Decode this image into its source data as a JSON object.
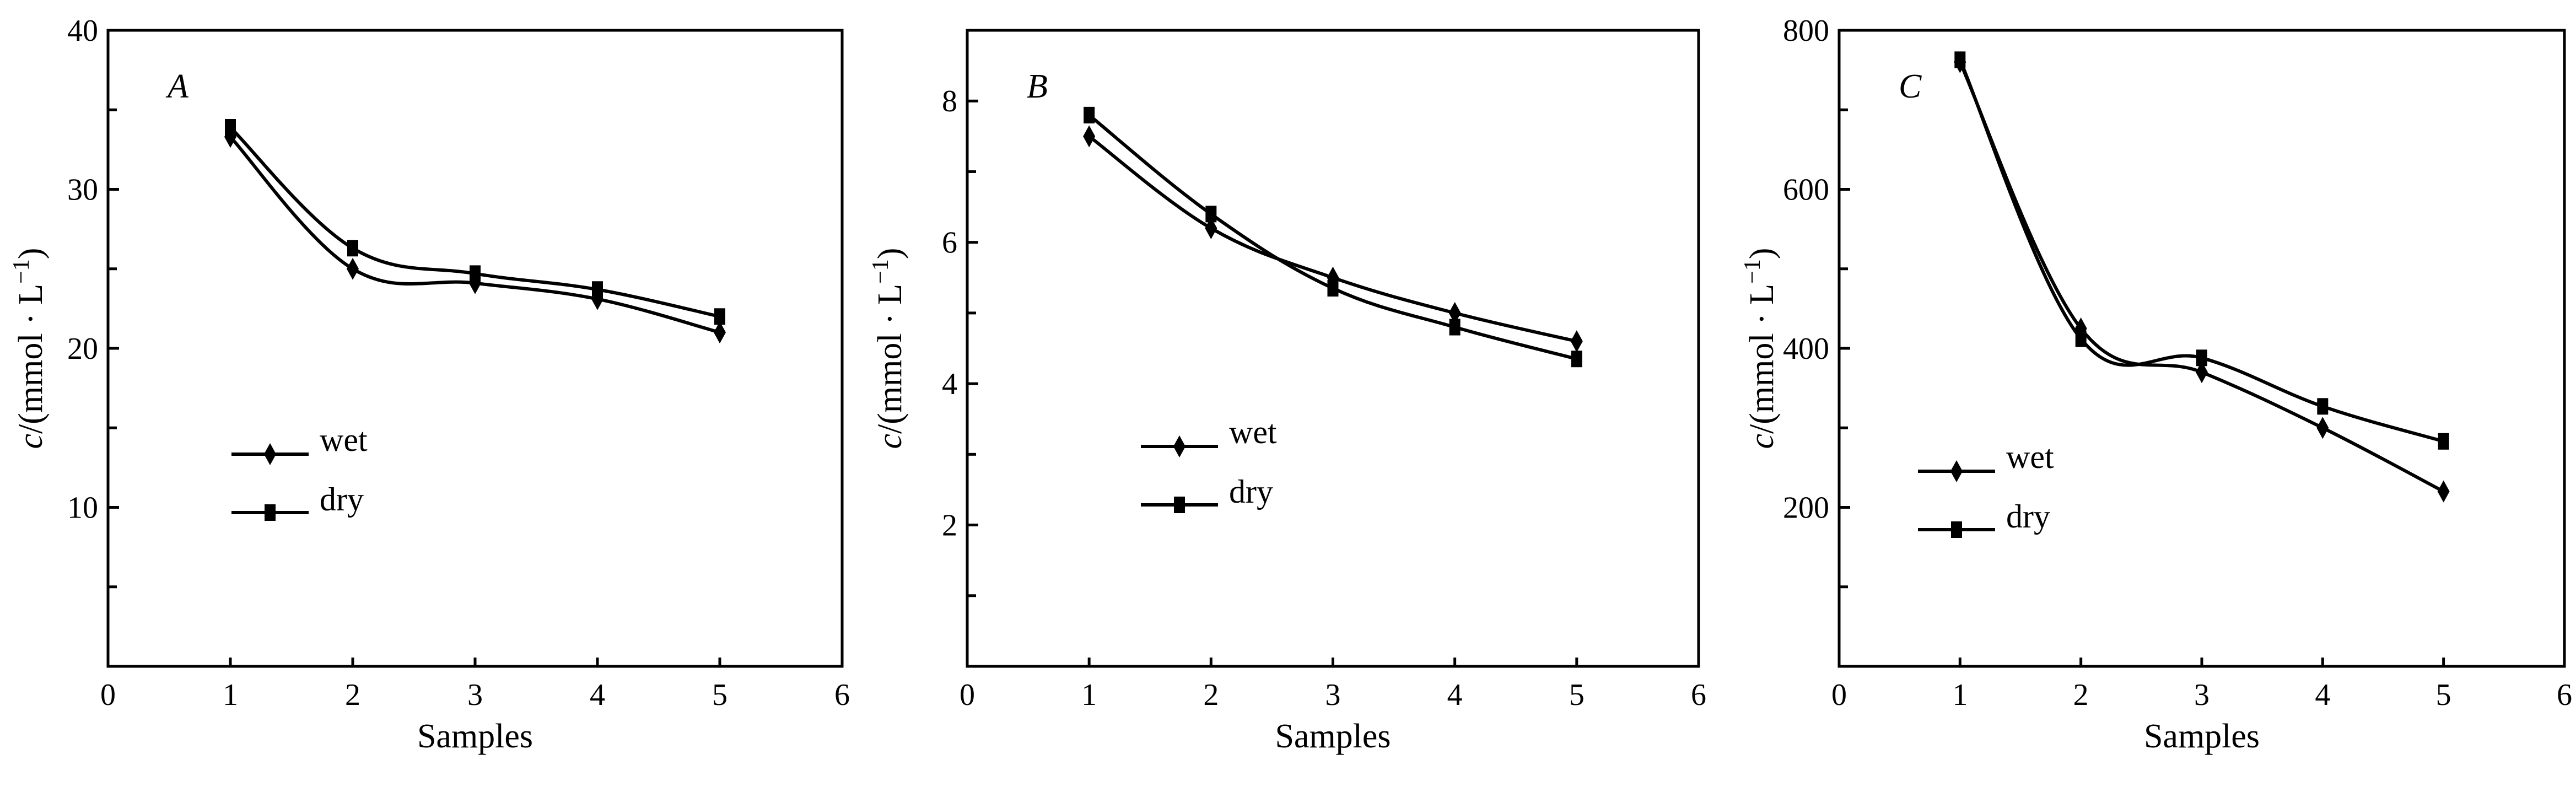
{
  "chart_data": [
    {
      "type": "line",
      "panel_label": "A",
      "xlabel": "Samples",
      "ylabel_italic": "c",
      "ylabel_rest": "/(mmol · L",
      "ylabel_sup": "−1",
      "ylabel_close": ")",
      "xlim": [
        0,
        6
      ],
      "ylim": [
        0,
        40
      ],
      "xticks": [
        0,
        1,
        2,
        3,
        4,
        5,
        6
      ],
      "yticks_labeled": [
        10,
        20,
        30,
        40
      ],
      "yticks_minor": [
        5,
        15,
        25,
        35
      ],
      "x": [
        1,
        2,
        3,
        4,
        5
      ],
      "series": [
        {
          "name": "wet",
          "marker": "diamond",
          "values": [
            33.3,
            25.0,
            24.1,
            23.1,
            21.0
          ]
        },
        {
          "name": "dry",
          "marker": "square",
          "values": [
            33.9,
            26.3,
            24.7,
            23.7,
            22.0
          ]
        }
      ],
      "legend_position": "lower-left"
    },
    {
      "type": "line",
      "panel_label": "B",
      "xlabel": "Samples",
      "ylabel_italic": "c",
      "ylabel_rest": "/(mmol · L",
      "ylabel_sup": "−1",
      "ylabel_close": ")",
      "xlim": [
        0,
        6
      ],
      "ylim": [
        0,
        9
      ],
      "xticks": [
        0,
        1,
        2,
        3,
        4,
        5,
        6
      ],
      "yticks_labeled": [
        2,
        4,
        6,
        8
      ],
      "yticks_minor": [
        1,
        3,
        5,
        7
      ],
      "x": [
        1,
        2,
        3,
        4,
        5
      ],
      "series": [
        {
          "name": "wet",
          "marker": "diamond",
          "values": [
            7.5,
            6.2,
            5.5,
            5.0,
            4.6
          ]
        },
        {
          "name": "dry",
          "marker": "square",
          "values": [
            7.8,
            6.4,
            5.35,
            4.8,
            4.35
          ]
        }
      ],
      "legend_position": "lower-left"
    },
    {
      "type": "line",
      "panel_label": "C",
      "xlabel": "Samples",
      "ylabel_italic": "c",
      "ylabel_rest": "/(mmol · L",
      "ylabel_sup": "−1",
      "ylabel_close": ")",
      "xlim": [
        0,
        6
      ],
      "ylim": [
        0,
        800
      ],
      "xticks": [
        0,
        1,
        2,
        3,
        4,
        5,
        6
      ],
      "yticks_labeled": [
        200,
        400,
        600,
        800
      ],
      "yticks_minor": [
        100,
        300,
        500,
        700
      ],
      "x": [
        1,
        2,
        3,
        4,
        5
      ],
      "series": [
        {
          "name": "wet",
          "marker": "diamond",
          "values": [
            760,
            425,
            370,
            300,
            220
          ]
        },
        {
          "name": "dry",
          "marker": "square",
          "values": [
            763,
            412,
            388,
            327,
            283
          ]
        }
      ],
      "legend_position": "lower-left"
    }
  ]
}
